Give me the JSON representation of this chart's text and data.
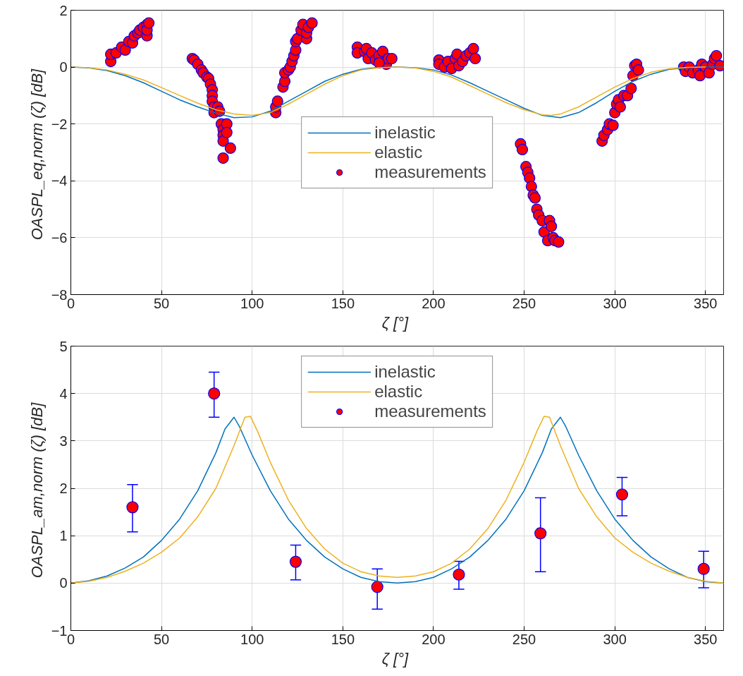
{
  "chart_data": [
    {
      "type": "line",
      "xlabel": "ζ  [°]",
      "ylabel": "OASPL_eq,norm (ζ)  [dB]",
      "xlim": [
        0,
        360
      ],
      "ylim": [
        -8,
        2
      ],
      "xticks": [
        0,
        50,
        100,
        150,
        200,
        250,
        300,
        350
      ],
      "yticks": [
        -8,
        -6,
        -4,
        -2,
        0,
        2
      ],
      "grid": true,
      "legend": "center",
      "series": [
        {
          "name": "inelastic",
          "color": "#0072bd",
          "x": [
            0,
            10,
            20,
            30,
            40,
            50,
            60,
            70,
            80,
            90,
            100,
            110,
            120,
            130,
            140,
            150,
            160,
            170,
            180,
            190,
            200,
            210,
            220,
            230,
            240,
            250,
            260,
            270,
            280,
            290,
            300,
            310,
            320,
            330,
            340,
            350,
            360
          ],
          "values": [
            0,
            -0.03,
            -0.12,
            -0.3,
            -0.55,
            -0.85,
            -1.15,
            -1.4,
            -1.62,
            -1.78,
            -1.75,
            -1.55,
            -1.2,
            -0.85,
            -0.5,
            -0.25,
            -0.08,
            -0.01,
            0,
            -0.02,
            -0.1,
            -0.28,
            -0.55,
            -0.85,
            -1.15,
            -1.45,
            -1.7,
            -1.78,
            -1.6,
            -1.25,
            -0.85,
            -0.5,
            -0.25,
            -0.08,
            -0.02,
            0,
            0
          ]
        },
        {
          "name": "elastic",
          "color": "#edb120",
          "x": [
            0,
            10,
            20,
            30,
            40,
            50,
            60,
            70,
            80,
            90,
            100,
            110,
            120,
            130,
            140,
            150,
            160,
            170,
            180,
            190,
            200,
            210,
            220,
            230,
            240,
            250,
            260,
            265,
            270,
            280,
            290,
            300,
            310,
            320,
            330,
            340,
            350
          ],
          "values": [
            0,
            -0.02,
            -0.1,
            -0.25,
            -0.45,
            -0.72,
            -1.0,
            -1.27,
            -1.5,
            -1.65,
            -1.7,
            -1.6,
            -1.3,
            -0.95,
            -0.6,
            -0.3,
            -0.1,
            -0.02,
            0,
            -0.03,
            -0.15,
            -0.35,
            -0.65,
            -0.95,
            -1.25,
            -1.5,
            -1.68,
            -1.7,
            -1.65,
            -1.4,
            -1.05,
            -0.7,
            -0.4,
            -0.18,
            -0.06,
            -0.01,
            0
          ]
        },
        {
          "name": "measurements",
          "type": "scatter",
          "marker": "circle",
          "color": "#ff0000",
          "x": [
            22,
            22,
            25,
            28,
            30,
            32,
            34,
            35,
            37,
            38,
            40,
            42,
            42,
            42,
            43,
            67,
            68,
            70,
            72,
            73,
            75,
            76,
            77,
            78,
            78,
            78,
            79,
            79,
            81,
            82,
            83,
            84,
            84,
            84,
            84,
            86,
            86,
            88,
            113,
            113,
            114,
            117,
            118,
            118,
            120,
            121,
            122,
            123,
            124,
            124,
            125,
            127,
            128,
            130,
            130,
            131,
            133,
            158,
            158,
            162,
            163,
            164,
            166,
            168,
            170,
            172,
            174,
            175,
            177,
            170,
            203,
            203,
            206,
            208,
            210,
            212,
            213,
            214,
            216,
            218,
            220,
            222,
            223,
            248,
            249,
            251,
            252,
            253,
            254,
            255,
            256,
            257,
            258,
            260,
            261,
            263,
            264,
            265,
            266,
            267,
            269,
            293,
            294,
            296,
            297,
            299,
            300,
            301,
            302,
            303,
            305,
            307,
            309,
            310,
            311,
            312,
            313,
            338,
            339,
            341,
            343,
            346,
            347,
            348,
            350,
            352,
            354,
            355,
            356,
            358
          ],
          "values": [
            0.2,
            0.45,
            0.5,
            0.7,
            0.6,
            0.9,
            0.85,
            1.1,
            1.2,
            1.3,
            1.4,
            1.5,
            1.1,
            1.3,
            1.55,
            0.3,
            0.25,
            0.1,
            -0.1,
            -0.2,
            -0.35,
            -0.4,
            -0.6,
            -0.8,
            -1.0,
            -1.2,
            -1.4,
            -1.6,
            -1.4,
            -1.55,
            -2.0,
            -2.2,
            -2.4,
            -2.6,
            -3.2,
            -2.0,
            -2.3,
            -2.85,
            -1.6,
            -1.4,
            -1.2,
            -0.7,
            -0.5,
            -0.2,
            -0.1,
            0.0,
            0.2,
            0.4,
            0.6,
            0.9,
            1.0,
            1.3,
            1.5,
            1.0,
            1.2,
            1.4,
            1.55,
            0.7,
            0.5,
            0.55,
            0.65,
            0.3,
            0.5,
            0.25,
            0.4,
            0.55,
            0.1,
            0.3,
            0.3,
            0.15,
            0.25,
            0.1,
            0.0,
            0.2,
            -0.05,
            0.3,
            0.45,
            0.05,
            0.2,
            0.4,
            0.5,
            0.65,
            0.3,
            -2.7,
            -2.9,
            -3.5,
            -3.7,
            -3.9,
            -4.2,
            -4.5,
            -4.6,
            -5.0,
            -5.2,
            -5.4,
            -5.8,
            -6.1,
            -5.4,
            -5.6,
            -6.0,
            -6.1,
            -6.15,
            -2.6,
            -2.4,
            -2.2,
            -2.0,
            -2.05,
            -1.6,
            -1.3,
            -1.15,
            -1.4,
            -1.0,
            -1.0,
            -0.75,
            -0.3,
            0.05,
            0.1,
            -0.1,
            0.0,
            -0.15,
            0.0,
            -0.2,
            -0.1,
            -0.3,
            0.1,
            0.0,
            -0.2,
            0.1,
            0.3,
            0.4,
            0.05
          ]
        }
      ]
    },
    {
      "type": "line",
      "xlabel": "ζ  [°]",
      "ylabel": "OASPL_am,norm (ζ)  [dB]",
      "xlim": [
        0,
        360
      ],
      "ylim": [
        -1,
        5
      ],
      "xticks": [
        0,
        50,
        100,
        150,
        200,
        250,
        300,
        350
      ],
      "yticks": [
        -1,
        0,
        1,
        2,
        3,
        4,
        5
      ],
      "grid": true,
      "legend": "top",
      "series": [
        {
          "name": "inelastic",
          "color": "#0072bd",
          "x": [
            0,
            10,
            20,
            30,
            40,
            50,
            60,
            70,
            80,
            85,
            90,
            93,
            100,
            110,
            120,
            130,
            140,
            150,
            160,
            170,
            180,
            190,
            200,
            210,
            220,
            230,
            240,
            250,
            260,
            265,
            270,
            273,
            280,
            290,
            300,
            310,
            320,
            330,
            340,
            350,
            360
          ],
          "values": [
            0,
            0.05,
            0.15,
            0.32,
            0.55,
            0.9,
            1.35,
            1.95,
            2.75,
            3.25,
            3.5,
            3.3,
            2.7,
            1.95,
            1.35,
            0.9,
            0.55,
            0.3,
            0.12,
            0.03,
            0,
            0.03,
            0.12,
            0.3,
            0.55,
            0.9,
            1.35,
            1.95,
            2.75,
            3.25,
            3.5,
            3.3,
            2.7,
            1.95,
            1.35,
            0.9,
            0.55,
            0.3,
            0.12,
            0.03,
            0
          ]
        },
        {
          "name": "elastic",
          "color": "#edb120",
          "x": [
            0,
            10,
            20,
            30,
            40,
            50,
            60,
            70,
            80,
            90,
            96,
            99,
            103,
            110,
            120,
            130,
            140,
            150,
            160,
            170,
            180,
            190,
            200,
            210,
            220,
            230,
            240,
            250,
            257,
            261,
            264,
            270,
            280,
            290,
            300,
            310,
            320,
            330,
            340,
            350,
            360
          ],
          "values": [
            0,
            0.04,
            0.12,
            0.25,
            0.42,
            0.65,
            0.95,
            1.4,
            2.0,
            2.9,
            3.5,
            3.52,
            3.2,
            2.55,
            1.75,
            1.15,
            0.72,
            0.42,
            0.24,
            0.15,
            0.12,
            0.15,
            0.24,
            0.42,
            0.72,
            1.15,
            1.75,
            2.55,
            3.2,
            3.52,
            3.5,
            2.9,
            2.0,
            1.4,
            0.95,
            0.65,
            0.42,
            0.25,
            0.12,
            0.04,
            0
          ]
        },
        {
          "name": "measurements",
          "type": "scatter",
          "marker": "circle",
          "color": "#ff0000",
          "x": [
            34,
            79,
            124,
            169,
            214,
            259,
            304,
            349
          ],
          "values": [
            1.6,
            4.0,
            0.45,
            -0.08,
            0.18,
            1.05,
            1.87,
            0.3
          ],
          "errors": [
            [
              1.08,
              2.08
            ],
            [
              3.5,
              4.45
            ],
            [
              0.07,
              0.8
            ],
            [
              -0.55,
              0.3
            ],
            [
              -0.13,
              0.46
            ],
            [
              0.24,
              1.8
            ],
            [
              1.42,
              2.23
            ],
            [
              -0.1,
              0.67
            ]
          ]
        }
      ]
    }
  ]
}
